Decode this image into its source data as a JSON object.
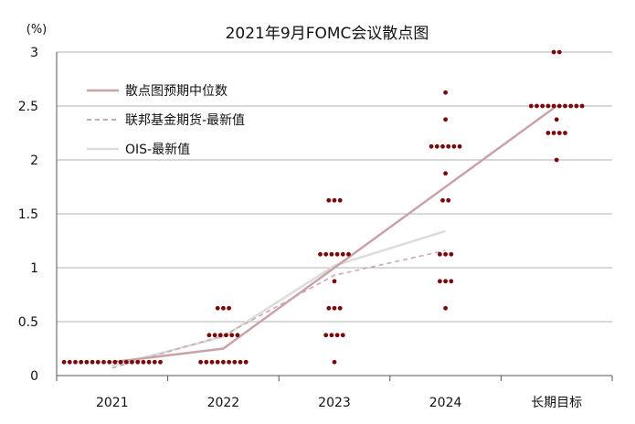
{
  "chart_data": {
    "type": "scatter",
    "title": "2021年9月FOMC会议散点图",
    "ylabel": "(%)",
    "ylim": [
      0,
      3
    ],
    "yticks": [
      0,
      0.5,
      1,
      1.5,
      2,
      2.5,
      3
    ],
    "ytick_labels": [
      "0",
      "0.5",
      "1",
      "1.5",
      "2",
      "2.5",
      "3"
    ],
    "categories": [
      "2021",
      "2022",
      "2023",
      "2024",
      "长期目标"
    ],
    "legend": [
      {
        "key": "median",
        "label": "散点图预期中位数"
      },
      {
        "key": "futures",
        "label": "联邦基金期货-最新值"
      },
      {
        "key": "ois",
        "label": "OIS-最新值"
      }
    ],
    "lines": {
      "median": {
        "x": [
          0,
          1,
          2,
          3,
          4
        ],
        "y": [
          0.125,
          0.25,
          1.0,
          1.75,
          2.5
        ]
      },
      "futures": {
        "x": [
          0,
          1,
          2,
          3
        ],
        "y": [
          0.07,
          0.37,
          0.93,
          1.16
        ]
      },
      "ois": {
        "x": [
          0,
          1,
          2,
          3
        ],
        "y": [
          0.09,
          0.36,
          1.02,
          1.34
        ]
      }
    },
    "dots": [
      {
        "category": "2021",
        "rows": [
          {
            "value": 0.125,
            "count": 18
          }
        ]
      },
      {
        "category": "2022",
        "rows": [
          {
            "value": 0.625,
            "count": 3
          },
          {
            "value": 0.375,
            "count": 6
          },
          {
            "value": 0.125,
            "count": 9
          }
        ]
      },
      {
        "category": "2023",
        "rows": [
          {
            "value": 1.625,
            "count": 3
          },
          {
            "value": 1.125,
            "count": 6
          },
          {
            "value": 0.875,
            "count": 1
          },
          {
            "value": 0.625,
            "count": 3
          },
          {
            "value": 0.375,
            "count": 4
          },
          {
            "value": 0.125,
            "count": 1
          }
        ]
      },
      {
        "category": "2024",
        "rows": [
          {
            "value": 2.625,
            "count": 1
          },
          {
            "value": 2.375,
            "count": 1
          },
          {
            "value": 2.125,
            "count": 6
          },
          {
            "value": 1.875,
            "count": 1
          },
          {
            "value": 1.625,
            "count": 2
          },
          {
            "value": 1.125,
            "count": 3
          },
          {
            "value": 0.875,
            "count": 3
          },
          {
            "value": 0.625,
            "count": 1
          }
        ]
      },
      {
        "category": "长期目标",
        "rows": [
          {
            "value": 3.0,
            "count": 2
          },
          {
            "value": 2.5,
            "count": 10
          },
          {
            "value": 2.375,
            "count": 1
          },
          {
            "value": 2.25,
            "count": 4
          },
          {
            "value": 2.0,
            "count": 1
          }
        ]
      }
    ],
    "colors": {
      "dot": "#7a0a0a",
      "median": "#c9a3a7",
      "futures": "#cfaaad",
      "ois": "#dcdcdc",
      "grid": "#b0b0b0",
      "axis": "#555555",
      "text": "#111111"
    }
  }
}
